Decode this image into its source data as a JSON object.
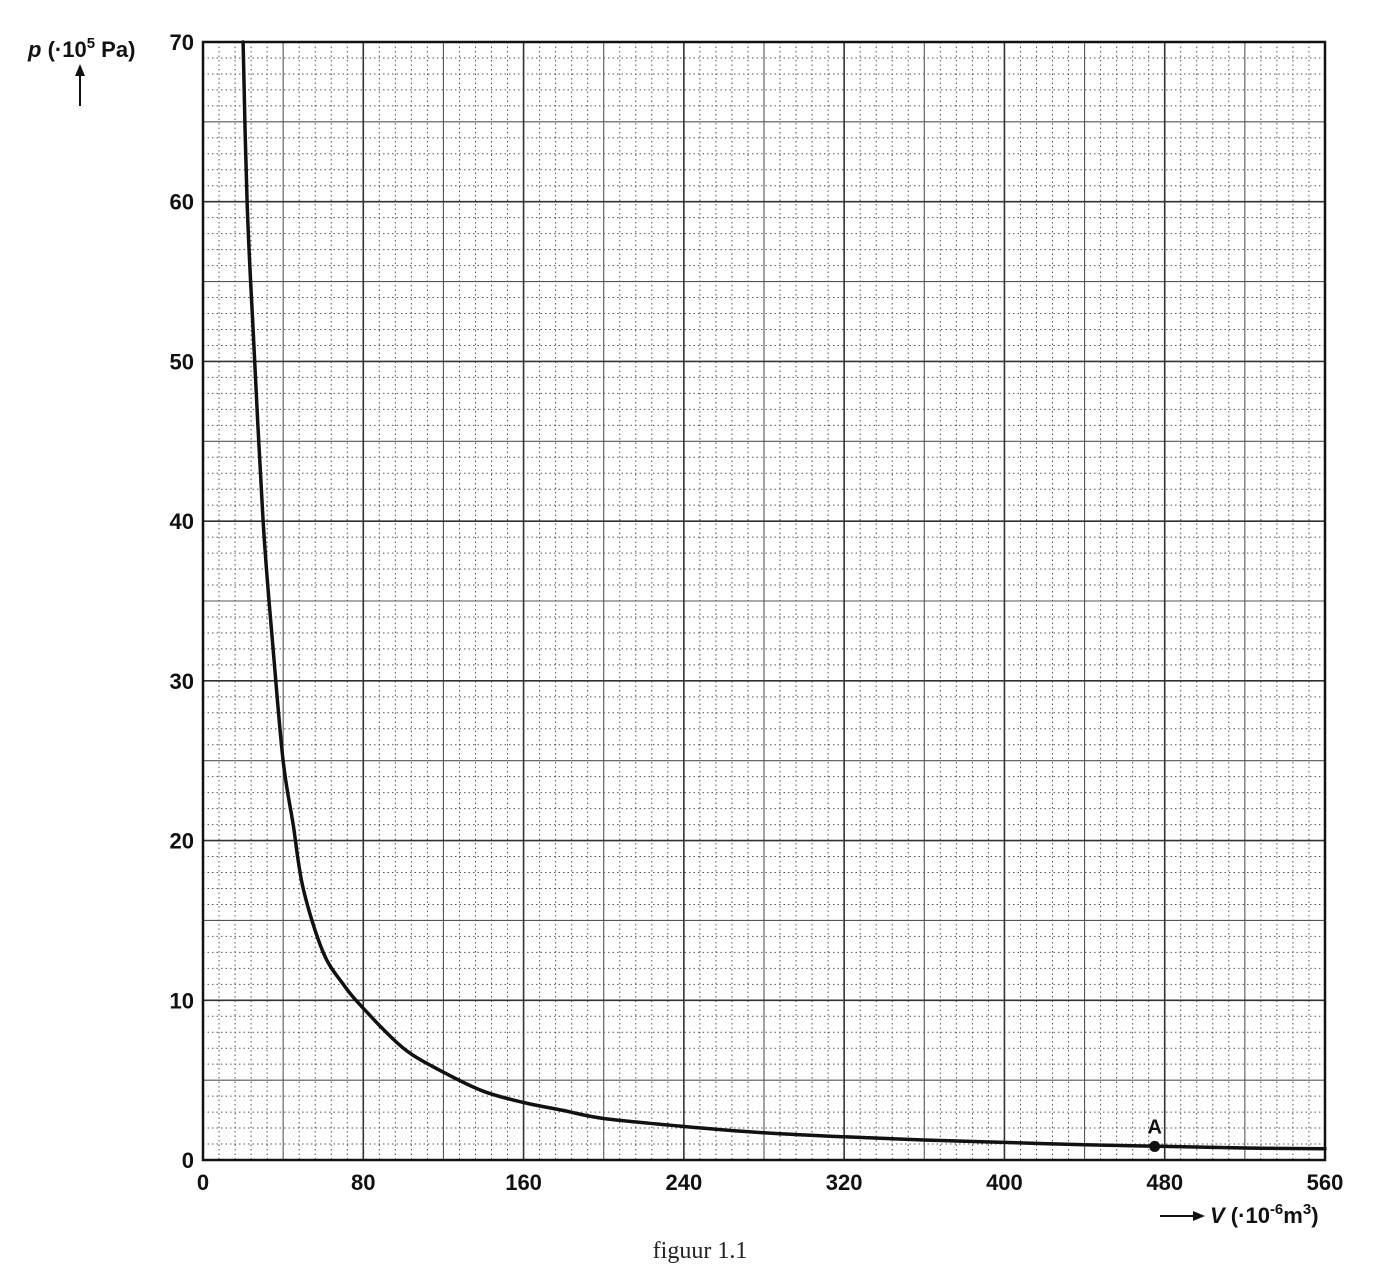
{
  "chart_data": {
    "type": "line",
    "caption": "figuur 1.1",
    "xlabel": {
      "var": "V",
      "prefix": " (·10",
      "exp": "-6",
      "unit": "m",
      "unit_exp": "3",
      "suffix": ")"
    },
    "ylabel": {
      "var": "p",
      "prefix": " (·10",
      "exp": "5",
      "unit": " Pa)"
    },
    "xlim": [
      0,
      560
    ],
    "ylim": [
      0,
      70
    ],
    "xticks": [
      0,
      80,
      160,
      240,
      320,
      400,
      480,
      560
    ],
    "yticks": [
      0,
      10,
      20,
      30,
      40,
      50,
      60,
      70
    ],
    "grid": true,
    "series": [
      {
        "x": [
          20,
          22,
          25,
          30,
          35,
          40,
          45,
          50,
          60,
          70,
          80,
          100,
          120,
          140,
          160,
          180,
          200,
          240,
          280,
          320,
          360,
          400,
          440,
          480,
          520,
          560
        ],
        "y": [
          70,
          60,
          52,
          40,
          32,
          25,
          21,
          17,
          13,
          11,
          9.5,
          7,
          5.5,
          4.3,
          3.6,
          3.1,
          2.6,
          2.1,
          1.7,
          1.45,
          1.25,
          1.1,
          0.95,
          0.85,
          0.75,
          0.7
        ]
      }
    ],
    "points": [
      {
        "label": "A",
        "x": 475,
        "y": 0.85
      }
    ]
  }
}
